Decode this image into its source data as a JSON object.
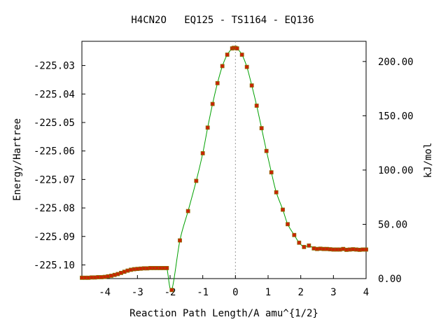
{
  "chart_data": {
    "type": "scatter",
    "title": "H4CN2O   EQ125 - TS1164 - EQ136",
    "xlabel": "Reaction Path Length/A amu^{1/2}",
    "ylabel": "Energy/Hartree",
    "y2label": "kJ/mol",
    "xlim": [
      -4.7,
      4.0
    ],
    "ylim": [
      -225.1048,
      -225.0215
    ],
    "y2lim": [
      0.0,
      218.6
    ],
    "xticks": [
      -4,
      -3,
      -2,
      -1,
      0,
      1,
      2,
      3,
      4
    ],
    "yticks": [
      -225.03,
      -225.04,
      -225.05,
      -225.06,
      -225.07,
      -225.08,
      -225.09,
      -225.1
    ],
    "ytick_labels": [
      "-225.03",
      "-225.04",
      "-225.05",
      "-225.06",
      "-225.07",
      "-225.08",
      "-225.09",
      "-225.10"
    ],
    "y2ticks": [
      0,
      50,
      100,
      150,
      200
    ],
    "y2tick_labels": [
      "0.00",
      "50.00",
      "100.00",
      "150.00",
      "200.00"
    ],
    "grid": false,
    "ts_marker_x": 0,
    "colors": {
      "line": "#00a000",
      "marker": "#cc2200",
      "marker_edge": "#8b6a00",
      "ts_line": "#999999"
    },
    "series": [
      {
        "x": [
          -4.7,
          -4.6,
          -4.5,
          -4.4,
          -4.3,
          -4.2,
          -4.1,
          -4.0,
          -3.9,
          -3.8,
          -3.7,
          -3.6,
          -3.5,
          -3.4,
          -3.3,
          -3.2,
          -3.1,
          -3.0,
          -2.9,
          -2.8,
          -2.7,
          -2.6,
          -2.5,
          -2.4,
          -2.3,
          -2.2,
          -2.1,
          -1.95,
          -1.7,
          -1.45,
          -1.2,
          -1.0,
          -0.85,
          -0.7,
          -0.55,
          -0.4,
          -0.25,
          -0.1,
          -0.05,
          0.0,
          0.05,
          0.2,
          0.35,
          0.5,
          0.65,
          0.8,
          0.95,
          1.1,
          1.25,
          1.45,
          1.6,
          1.8,
          1.95,
          2.1,
          2.25,
          2.4,
          2.5,
          2.6,
          2.7,
          2.8,
          2.9,
          3.0,
          3.1,
          3.2,
          3.3,
          3.4,
          3.5,
          3.6,
          3.7,
          3.8,
          3.9,
          4.0
        ],
        "y": [
          -225.1045,
          -225.1045,
          -225.1045,
          -225.1044,
          -225.1044,
          -225.1043,
          -225.1043,
          -225.1042,
          -225.104,
          -225.1038,
          -225.1035,
          -225.1032,
          -225.1028,
          -225.1024,
          -225.102,
          -225.1017,
          -225.1015,
          -225.1014,
          -225.1013,
          -225.1012,
          -225.1012,
          -225.1011,
          -225.1011,
          -225.1011,
          -225.1011,
          -225.1011,
          -225.1011,
          -225.1088,
          -225.0914,
          -225.0811,
          -225.0705,
          -225.0608,
          -225.0518,
          -225.0435,
          -225.0362,
          -225.0302,
          -225.0262,
          -225.024,
          -225.0238,
          -225.0238,
          -225.024,
          -225.0262,
          -225.0305,
          -225.037,
          -225.0441,
          -225.052,
          -225.06,
          -225.0675,
          -225.0745,
          -225.0806,
          -225.0857,
          -225.0895,
          -225.0922,
          -225.0937,
          -225.0932,
          -225.0942,
          -225.0944,
          -225.0943,
          -225.0944,
          -225.0944,
          -225.0945,
          -225.0946,
          -225.0946,
          -225.0946,
          -225.0944,
          -225.0947,
          -225.0946,
          -225.0945,
          -225.0946,
          -225.0947,
          -225.0946,
          -225.0946
        ]
      }
    ]
  }
}
